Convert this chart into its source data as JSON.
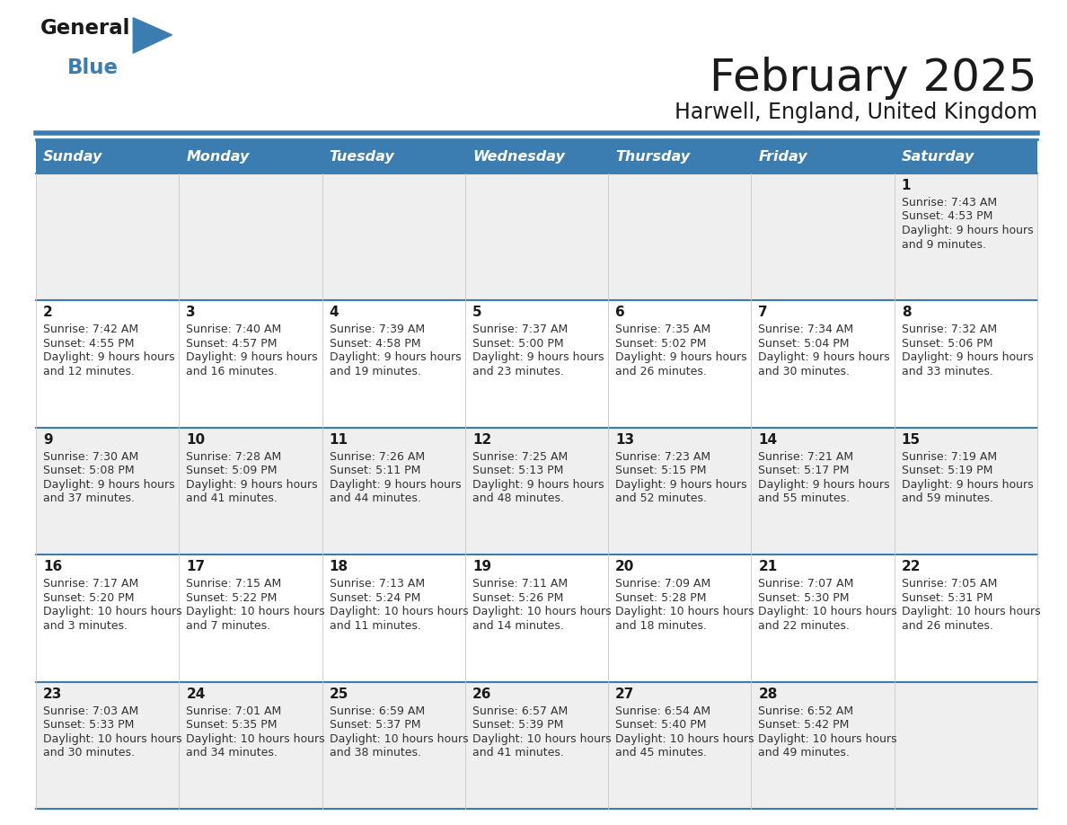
{
  "title": "February 2025",
  "subtitle": "Harwell, England, United Kingdom",
  "header_color": "#3C7DB1",
  "header_text_color": "#FFFFFF",
  "day_names": [
    "Sunday",
    "Monday",
    "Tuesday",
    "Wednesday",
    "Thursday",
    "Friday",
    "Saturday"
  ],
  "background_color": "#FFFFFF",
  "cell_bg_even": "#EFEFEF",
  "cell_bg_odd": "#FFFFFF",
  "border_color": "#3C7DB1",
  "day_num_color": "#1A1A1A",
  "info_text_color": "#333333",
  "calendar": [
    [
      null,
      null,
      null,
      null,
      null,
      null,
      {
        "day": 1,
        "sunrise": "7:43 AM",
        "sunset": "4:53 PM",
        "daylight": "9 hours and 9 minutes"
      }
    ],
    [
      {
        "day": 2,
        "sunrise": "7:42 AM",
        "sunset": "4:55 PM",
        "daylight": "9 hours and 12 minutes"
      },
      {
        "day": 3,
        "sunrise": "7:40 AM",
        "sunset": "4:57 PM",
        "daylight": "9 hours and 16 minutes"
      },
      {
        "day": 4,
        "sunrise": "7:39 AM",
        "sunset": "4:58 PM",
        "daylight": "9 hours and 19 minutes"
      },
      {
        "day": 5,
        "sunrise": "7:37 AM",
        "sunset": "5:00 PM",
        "daylight": "9 hours and 23 minutes"
      },
      {
        "day": 6,
        "sunrise": "7:35 AM",
        "sunset": "5:02 PM",
        "daylight": "9 hours and 26 minutes"
      },
      {
        "day": 7,
        "sunrise": "7:34 AM",
        "sunset": "5:04 PM",
        "daylight": "9 hours and 30 minutes"
      },
      {
        "day": 8,
        "sunrise": "7:32 AM",
        "sunset": "5:06 PM",
        "daylight": "9 hours and 33 minutes"
      }
    ],
    [
      {
        "day": 9,
        "sunrise": "7:30 AM",
        "sunset": "5:08 PM",
        "daylight": "9 hours and 37 minutes"
      },
      {
        "day": 10,
        "sunrise": "7:28 AM",
        "sunset": "5:09 PM",
        "daylight": "9 hours and 41 minutes"
      },
      {
        "day": 11,
        "sunrise": "7:26 AM",
        "sunset": "5:11 PM",
        "daylight": "9 hours and 44 minutes"
      },
      {
        "day": 12,
        "sunrise": "7:25 AM",
        "sunset": "5:13 PM",
        "daylight": "9 hours and 48 minutes"
      },
      {
        "day": 13,
        "sunrise": "7:23 AM",
        "sunset": "5:15 PM",
        "daylight": "9 hours and 52 minutes"
      },
      {
        "day": 14,
        "sunrise": "7:21 AM",
        "sunset": "5:17 PM",
        "daylight": "9 hours and 55 minutes"
      },
      {
        "day": 15,
        "sunrise": "7:19 AM",
        "sunset": "5:19 PM",
        "daylight": "9 hours and 59 minutes"
      }
    ],
    [
      {
        "day": 16,
        "sunrise": "7:17 AM",
        "sunset": "5:20 PM",
        "daylight": "10 hours and 3 minutes"
      },
      {
        "day": 17,
        "sunrise": "7:15 AM",
        "sunset": "5:22 PM",
        "daylight": "10 hours and 7 minutes"
      },
      {
        "day": 18,
        "sunrise": "7:13 AM",
        "sunset": "5:24 PM",
        "daylight": "10 hours and 11 minutes"
      },
      {
        "day": 19,
        "sunrise": "7:11 AM",
        "sunset": "5:26 PM",
        "daylight": "10 hours and 14 minutes"
      },
      {
        "day": 20,
        "sunrise": "7:09 AM",
        "sunset": "5:28 PM",
        "daylight": "10 hours and 18 minutes"
      },
      {
        "day": 21,
        "sunrise": "7:07 AM",
        "sunset": "5:30 PM",
        "daylight": "10 hours and 22 minutes"
      },
      {
        "day": 22,
        "sunrise": "7:05 AM",
        "sunset": "5:31 PM",
        "daylight": "10 hours and 26 minutes"
      }
    ],
    [
      {
        "day": 23,
        "sunrise": "7:03 AM",
        "sunset": "5:33 PM",
        "daylight": "10 hours and 30 minutes"
      },
      {
        "day": 24,
        "sunrise": "7:01 AM",
        "sunset": "5:35 PM",
        "daylight": "10 hours and 34 minutes"
      },
      {
        "day": 25,
        "sunrise": "6:59 AM",
        "sunset": "5:37 PM",
        "daylight": "10 hours and 38 minutes"
      },
      {
        "day": 26,
        "sunrise": "6:57 AM",
        "sunset": "5:39 PM",
        "daylight": "10 hours and 41 minutes"
      },
      {
        "day": 27,
        "sunrise": "6:54 AM",
        "sunset": "5:40 PM",
        "daylight": "10 hours and 45 minutes"
      },
      {
        "day": 28,
        "sunrise": "6:52 AM",
        "sunset": "5:42 PM",
        "daylight": "10 hours and 49 minutes"
      },
      null
    ]
  ]
}
